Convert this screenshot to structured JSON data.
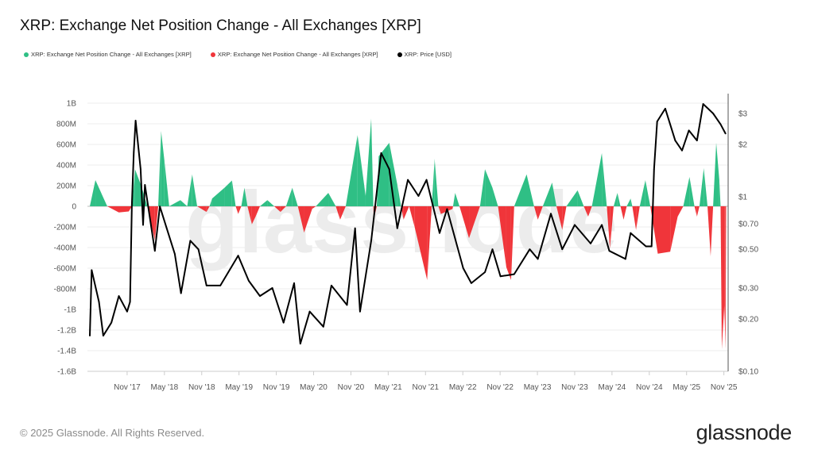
{
  "title": "XRP: Exchange Net Position Change - All Exchanges [XRP]",
  "legend": [
    {
      "label": "XRP: Exchange Net Position Change - All Exchanges [XRP]",
      "color": "#2fbf85"
    },
    {
      "label": "XRP: Exchange Net Position Change - All Exchanges [XRP]",
      "color": "#f0353a"
    },
    {
      "label": "XRP: Price [USD]",
      "color": "#000000"
    }
  ],
  "watermark": "glassnode",
  "footer": "© 2025 Glassnode. All Rights Reserved.",
  "logo": "glassnode",
  "chart_data": {
    "type": "area+line",
    "title": "XRP: Exchange Net Position Change - All Exchanges [XRP]",
    "grid": "horizontal",
    "legend_position": "top-left",
    "x_axis": {
      "type": "date",
      "range": [
        "2017-05-01",
        "2025-11-15"
      ],
      "tick_labels": [
        "Nov '17",
        "May '18",
        "Nov '18",
        "May '19",
        "Nov '19",
        "May '20",
        "Nov '20",
        "May '21",
        "Nov '21",
        "May '22",
        "Nov '22",
        "May '23",
        "Nov '23",
        "May '24",
        "Nov '24",
        "May '25",
        "Nov '25"
      ],
      "tick_dates": [
        "2017-11-01",
        "2018-05-01",
        "2018-11-01",
        "2019-05-01",
        "2019-11-01",
        "2020-05-01",
        "2020-11-01",
        "2021-05-01",
        "2021-11-01",
        "2022-05-01",
        "2022-11-01",
        "2023-05-01",
        "2023-11-01",
        "2024-05-01",
        "2024-11-01",
        "2025-05-01",
        "2025-11-01"
      ]
    },
    "y_left": {
      "unit": "XRP (millions)",
      "range": [
        -1600,
        1000
      ],
      "tick_values": [
        1000,
        800,
        600,
        400,
        200,
        0,
        -200,
        -400,
        -600,
        -800,
        -1000,
        -1200,
        -1400,
        -1600
      ],
      "tick_labels": [
        "1B",
        "800M",
        "600M",
        "400M",
        "200M",
        "0",
        "-200M",
        "-400M",
        "-600M",
        "-800M",
        "-1B",
        "-1.2B",
        "-1.4B",
        "-1.6B"
      ]
    },
    "y_right": {
      "scale": "log",
      "range": [
        0.1,
        3.5
      ],
      "tick_values": [
        3,
        2,
        1,
        0.7,
        0.5,
        0.3,
        0.2,
        0.1
      ],
      "tick_labels": [
        "$3",
        "$2",
        "$1",
        "$0.70",
        "$0.50",
        "$0.30",
        "$0.20",
        "$0.10"
      ]
    },
    "colors": {
      "positive": "#2fbf85",
      "negative": "#f0353a",
      "price": "#000000"
    },
    "net_position_change": [
      [
        "2017-05-01",
        0
      ],
      [
        "2017-05-28",
        254
      ],
      [
        "2017-07-25",
        0
      ],
      [
        "2017-09-21",
        -60
      ],
      [
        "2017-11-09",
        -50
      ],
      [
        "2017-11-24",
        0
      ],
      [
        "2017-12-09",
        360
      ],
      [
        "2018-01-09",
        200
      ],
      [
        "2018-02-09",
        0
      ],
      [
        "2018-03-15",
        -330
      ],
      [
        "2018-04-01",
        0
      ],
      [
        "2018-04-15",
        730
      ],
      [
        "2018-05-01",
        440
      ],
      [
        "2018-05-24",
        0
      ],
      [
        "2018-07-18",
        60
      ],
      [
        "2018-08-21",
        0
      ],
      [
        "2018-09-15",
        310
      ],
      [
        "2018-10-09",
        0
      ],
      [
        "2018-11-24",
        -55
      ],
      [
        "2018-12-09",
        0
      ],
      [
        "2018-12-21",
        75
      ],
      [
        "2019-02-21",
        180
      ],
      [
        "2019-03-27",
        250
      ],
      [
        "2019-04-15",
        0
      ],
      [
        "2019-04-27",
        -75
      ],
      [
        "2019-05-12",
        0
      ],
      [
        "2019-05-27",
        180
      ],
      [
        "2019-06-12",
        0
      ],
      [
        "2019-07-03",
        -175
      ],
      [
        "2019-07-21",
        -100
      ],
      [
        "2019-08-12",
        0
      ],
      [
        "2019-09-18",
        60
      ],
      [
        "2019-10-21",
        0
      ],
      [
        "2019-11-21",
        -55
      ],
      [
        "2019-12-18",
        0
      ],
      [
        "2020-01-18",
        180
      ],
      [
        "2020-02-15",
        0
      ],
      [
        "2020-03-15",
        -255
      ],
      [
        "2020-04-24",
        -25
      ],
      [
        "2020-05-12",
        0
      ],
      [
        "2020-07-12",
        130
      ],
      [
        "2020-08-18",
        0
      ],
      [
        "2020-09-09",
        -130
      ],
      [
        "2020-10-06",
        0
      ],
      [
        "2020-12-03",
        690
      ],
      [
        "2021-01-12",
        100
      ],
      [
        "2021-02-09",
        850
      ],
      [
        "2021-02-21",
        -130
      ],
      [
        "2021-03-06",
        0
      ],
      [
        "2021-03-15",
        485
      ],
      [
        "2021-05-06",
        615
      ],
      [
        "2021-06-15",
        210
      ],
      [
        "2021-07-03",
        0
      ],
      [
        "2021-07-15",
        -130
      ],
      [
        "2021-08-12",
        0
      ],
      [
        "2021-09-09",
        -205
      ],
      [
        "2021-11-09",
        -715
      ],
      [
        "2021-12-01",
        0
      ],
      [
        "2021-12-15",
        460
      ],
      [
        "2022-01-03",
        0
      ],
      [
        "2022-01-15",
        -75
      ],
      [
        "2022-03-12",
        -25
      ],
      [
        "2022-03-24",
        130
      ],
      [
        "2022-04-15",
        0
      ],
      [
        "2022-06-01",
        -310
      ],
      [
        "2022-07-24",
        0
      ],
      [
        "2022-08-18",
        360
      ],
      [
        "2022-09-24",
        180
      ],
      [
        "2022-10-21",
        0
      ],
      [
        "2022-12-01",
        -590
      ],
      [
        "2022-12-24",
        -715
      ],
      [
        "2023-01-09",
        0
      ],
      [
        "2023-03-09",
        310
      ],
      [
        "2023-04-15",
        0
      ],
      [
        "2023-05-03",
        -130
      ],
      [
        "2023-05-27",
        0
      ],
      [
        "2023-07-12",
        230
      ],
      [
        "2023-08-03",
        0
      ],
      [
        "2023-09-01",
        -230
      ],
      [
        "2023-09-21",
        0
      ],
      [
        "2023-11-15",
        155
      ],
      [
        "2023-12-15",
        0
      ],
      [
        "2024-01-06",
        -100
      ],
      [
        "2024-01-24",
        0
      ],
      [
        "2024-03-12",
        515
      ],
      [
        "2024-04-06",
        0
      ],
      [
        "2024-04-21",
        -410
      ],
      [
        "2024-05-09",
        0
      ],
      [
        "2024-05-27",
        130
      ],
      [
        "2024-06-12",
        0
      ],
      [
        "2024-06-27",
        -130
      ],
      [
        "2024-07-12",
        0
      ],
      [
        "2024-08-01",
        75
      ],
      [
        "2024-08-09",
        0
      ],
      [
        "2024-08-27",
        -230
      ],
      [
        "2024-09-15",
        0
      ],
      [
        "2024-10-12",
        254
      ],
      [
        "2024-11-06",
        0
      ],
      [
        "2024-12-12",
        -460
      ],
      [
        "2025-02-12",
        -440
      ],
      [
        "2025-03-18",
        -100
      ],
      [
        "2025-04-15",
        0
      ],
      [
        "2025-05-15",
        285
      ],
      [
        "2025-06-09",
        0
      ],
      [
        "2025-06-21",
        -100
      ],
      [
        "2025-07-03",
        0
      ],
      [
        "2025-07-24",
        370
      ],
      [
        "2025-08-12",
        0
      ],
      [
        "2025-08-27",
        -485
      ],
      [
        "2025-09-09",
        0
      ],
      [
        "2025-09-24",
        615
      ],
      [
        "2025-10-09",
        254
      ],
      [
        "2025-10-15",
        0
      ],
      [
        "2025-10-21",
        -1385
      ],
      [
        "2025-11-03",
        -960
      ],
      [
        "2025-11-09",
        -1385
      ],
      [
        "2025-11-12",
        0
      ]
    ],
    "price_usd": [
      [
        "2017-05-01",
        0.16
      ],
      [
        "2017-05-10",
        0.38
      ],
      [
        "2017-06-15",
        0.25
      ],
      [
        "2017-07-06",
        0.16
      ],
      [
        "2017-08-15",
        0.19
      ],
      [
        "2017-09-21",
        0.27
      ],
      [
        "2017-11-01",
        0.22
      ],
      [
        "2017-11-15",
        0.25
      ],
      [
        "2017-11-24",
        0.9
      ],
      [
        "2017-12-03",
        1.8
      ],
      [
        "2017-12-12",
        2.73
      ],
      [
        "2018-01-06",
        1.44
      ],
      [
        "2018-01-18",
        0.69
      ],
      [
        "2018-01-27",
        1.17
      ],
      [
        "2018-03-15",
        0.49
      ],
      [
        "2018-04-09",
        0.88
      ],
      [
        "2018-05-12",
        0.66
      ],
      [
        "2018-06-21",
        0.47
      ],
      [
        "2018-07-21",
        0.28
      ],
      [
        "2018-09-06",
        0.56
      ],
      [
        "2018-10-15",
        0.5
      ],
      [
        "2018-11-24",
        0.31
      ],
      [
        "2019-02-01",
        0.31
      ],
      [
        "2019-04-27",
        0.46
      ],
      [
        "2019-06-18",
        0.33
      ],
      [
        "2019-08-12",
        0.27
      ],
      [
        "2019-10-12",
        0.3
      ],
      [
        "2019-12-06",
        0.19
      ],
      [
        "2020-01-27",
        0.32
      ],
      [
        "2020-02-27",
        0.144
      ],
      [
        "2020-04-12",
        0.22
      ],
      [
        "2020-06-18",
        0.18
      ],
      [
        "2020-07-27",
        0.31
      ],
      [
        "2020-10-12",
        0.24
      ],
      [
        "2020-11-21",
        0.66
      ],
      [
        "2020-12-15",
        0.22
      ],
      [
        "2021-02-09",
        0.56
      ],
      [
        "2021-03-27",
        1.78
      ],
      [
        "2021-05-06",
        1.44
      ],
      [
        "2021-06-15",
        0.66
      ],
      [
        "2021-08-06",
        1.25
      ],
      [
        "2021-09-27",
        1.01
      ],
      [
        "2021-11-06",
        1.25
      ],
      [
        "2022-01-09",
        0.62
      ],
      [
        "2022-02-15",
        0.85
      ],
      [
        "2022-05-03",
        0.39
      ],
      [
        "2022-06-12",
        0.32
      ],
      [
        "2022-08-18",
        0.37
      ],
      [
        "2022-09-24",
        0.5
      ],
      [
        "2022-11-03",
        0.35
      ],
      [
        "2023-01-09",
        0.36
      ],
      [
        "2023-03-24",
        0.5
      ],
      [
        "2023-05-03",
        0.44
      ],
      [
        "2023-07-06",
        0.8
      ],
      [
        "2023-09-01",
        0.5
      ],
      [
        "2023-11-01",
        0.69
      ],
      [
        "2024-01-18",
        0.54
      ],
      [
        "2024-03-12",
        0.69
      ],
      [
        "2024-04-18",
        0.49
      ],
      [
        "2024-07-06",
        0.44
      ],
      [
        "2024-08-01",
        0.62
      ],
      [
        "2024-10-15",
        0.52
      ],
      [
        "2024-11-12",
        0.52
      ],
      [
        "2024-11-24",
        1.44
      ],
      [
        "2024-12-09",
        2.7
      ],
      [
        "2025-01-18",
        3.2
      ],
      [
        "2025-03-06",
        2.1
      ],
      [
        "2025-04-09",
        1.84
      ],
      [
        "2025-05-12",
        2.4
      ],
      [
        "2025-06-21",
        2.1
      ],
      [
        "2025-07-21",
        3.4
      ],
      [
        "2025-09-09",
        3.0
      ],
      [
        "2025-10-15",
        2.6
      ],
      [
        "2025-11-09",
        2.3
      ]
    ]
  }
}
